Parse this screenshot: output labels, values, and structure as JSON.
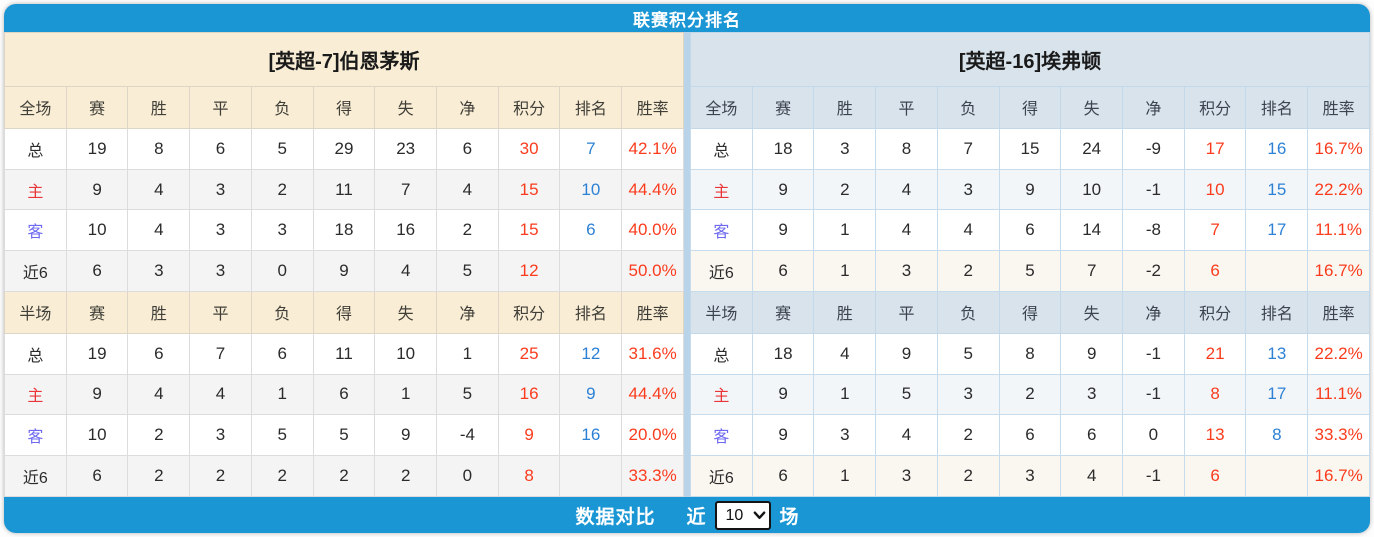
{
  "header": {
    "title": "联赛积分排名"
  },
  "colors": {
    "accent": "#1b96d4",
    "left_bg": "#f9eed5",
    "right_bg": "#d8e3ec",
    "points": "#fa3c1d",
    "rank": "#2d81d5",
    "home": "#e93538",
    "away": "#6e6af0"
  },
  "teams": [
    {
      "name": "[英超-7]伯恩茅斯",
      "full": {
        "section_label": "全场",
        "columns": [
          "赛",
          "胜",
          "平",
          "负",
          "得",
          "失",
          "净",
          "积分",
          "排名",
          "胜率"
        ],
        "rows": [
          {
            "label": "总",
            "type": "total",
            "values": [
              "19",
              "8",
              "6",
              "5",
              "29",
              "23",
              "6"
            ],
            "points": "30",
            "rank": "7",
            "win_rate": "42.1%"
          },
          {
            "label": "主",
            "type": "home",
            "values": [
              "9",
              "4",
              "3",
              "2",
              "11",
              "7",
              "4"
            ],
            "points": "15",
            "rank": "10",
            "win_rate": "44.4%"
          },
          {
            "label": "客",
            "type": "away",
            "values": [
              "10",
              "4",
              "3",
              "3",
              "18",
              "16",
              "2"
            ],
            "points": "15",
            "rank": "6",
            "win_rate": "40.0%"
          },
          {
            "label": "近6",
            "type": "recent",
            "values": [
              "6",
              "3",
              "3",
              "0",
              "9",
              "4",
              "5"
            ],
            "points": "12",
            "rank": "",
            "win_rate": "50.0%"
          }
        ]
      },
      "half": {
        "section_label": "半场",
        "columns": [
          "赛",
          "胜",
          "平",
          "负",
          "得",
          "失",
          "净",
          "积分",
          "排名",
          "胜率"
        ],
        "rows": [
          {
            "label": "总",
            "type": "total",
            "values": [
              "19",
              "6",
              "7",
              "6",
              "11",
              "10",
              "1"
            ],
            "points": "25",
            "rank": "12",
            "win_rate": "31.6%"
          },
          {
            "label": "主",
            "type": "home",
            "values": [
              "9",
              "4",
              "4",
              "1",
              "6",
              "1",
              "5"
            ],
            "points": "16",
            "rank": "9",
            "win_rate": "44.4%"
          },
          {
            "label": "客",
            "type": "away",
            "values": [
              "10",
              "2",
              "3",
              "5",
              "5",
              "9",
              "-4"
            ],
            "points": "9",
            "rank": "16",
            "win_rate": "20.0%"
          },
          {
            "label": "近6",
            "type": "recent",
            "values": [
              "6",
              "2",
              "2",
              "2",
              "2",
              "2",
              "0"
            ],
            "points": "8",
            "rank": "",
            "win_rate": "33.3%"
          }
        ]
      }
    },
    {
      "name": "[英超-16]埃弗顿",
      "full": {
        "section_label": "全场",
        "columns": [
          "赛",
          "胜",
          "平",
          "负",
          "得",
          "失",
          "净",
          "积分",
          "排名",
          "胜率"
        ],
        "rows": [
          {
            "label": "总",
            "type": "total",
            "values": [
              "18",
              "3",
              "8",
              "7",
              "15",
              "24",
              "-9"
            ],
            "points": "17",
            "rank": "16",
            "win_rate": "16.7%"
          },
          {
            "label": "主",
            "type": "home",
            "values": [
              "9",
              "2",
              "4",
              "3",
              "9",
              "10",
              "-1"
            ],
            "points": "10",
            "rank": "15",
            "win_rate": "22.2%"
          },
          {
            "label": "客",
            "type": "away",
            "values": [
              "9",
              "1",
              "4",
              "4",
              "6",
              "14",
              "-8"
            ],
            "points": "7",
            "rank": "17",
            "win_rate": "11.1%"
          },
          {
            "label": "近6",
            "type": "recent",
            "values": [
              "6",
              "1",
              "3",
              "2",
              "5",
              "7",
              "-2"
            ],
            "points": "6",
            "rank": "",
            "win_rate": "16.7%"
          }
        ]
      },
      "half": {
        "section_label": "半场",
        "columns": [
          "赛",
          "胜",
          "平",
          "负",
          "得",
          "失",
          "净",
          "积分",
          "排名",
          "胜率"
        ],
        "rows": [
          {
            "label": "总",
            "type": "total",
            "values": [
              "18",
              "4",
              "9",
              "5",
              "8",
              "9",
              "-1"
            ],
            "points": "21",
            "rank": "13",
            "win_rate": "22.2%"
          },
          {
            "label": "主",
            "type": "home",
            "values": [
              "9",
              "1",
              "5",
              "3",
              "2",
              "3",
              "-1"
            ],
            "points": "8",
            "rank": "17",
            "win_rate": "11.1%"
          },
          {
            "label": "客",
            "type": "away",
            "values": [
              "9",
              "3",
              "4",
              "2",
              "6",
              "6",
              "0"
            ],
            "points": "13",
            "rank": "8",
            "win_rate": "33.3%"
          },
          {
            "label": "近6",
            "type": "recent",
            "values": [
              "6",
              "1",
              "3",
              "2",
              "3",
              "4",
              "-1"
            ],
            "points": "6",
            "rank": "",
            "win_rate": "16.7%"
          }
        ]
      }
    }
  ],
  "footer": {
    "compare_label": "数据对比",
    "recent_label": "近",
    "suffix_label": "场",
    "selected": "10",
    "options": [
      "10"
    ]
  }
}
